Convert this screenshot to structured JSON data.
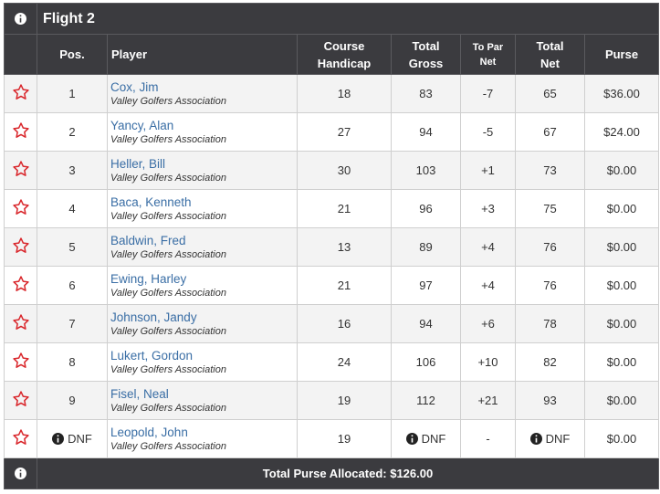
{
  "title": "Flight 2",
  "headers": {
    "pos": "Pos.",
    "player": "Player",
    "handicap_1": "Course",
    "handicap_2": "Handicap",
    "gross_1": "Total",
    "gross_2": "Gross",
    "topar_1": "To Par",
    "topar_2": "Net",
    "net_1": "Total",
    "net_2": "Net",
    "purse": "Purse"
  },
  "rows": [
    {
      "pos": "1",
      "name": "Cox, Jim",
      "assoc": "Valley Golfers Association",
      "handicap": "18",
      "gross": "83",
      "topar": "-7",
      "net": "65",
      "purse": "$36.00"
    },
    {
      "pos": "2",
      "name": "Yancy, Alan",
      "assoc": "Valley Golfers Association",
      "handicap": "27",
      "gross": "94",
      "topar": "-5",
      "net": "67",
      "purse": "$24.00"
    },
    {
      "pos": "3",
      "name": "Heller, Bill",
      "assoc": "Valley Golfers Association",
      "handicap": "30",
      "gross": "103",
      "topar": "+1",
      "net": "73",
      "purse": "$0.00"
    },
    {
      "pos": "4",
      "name": "Baca, Kenneth",
      "assoc": "Valley Golfers Association",
      "handicap": "21",
      "gross": "96",
      "topar": "+3",
      "net": "75",
      "purse": "$0.00"
    },
    {
      "pos": "5",
      "name": "Baldwin, Fred",
      "assoc": "Valley Golfers Association",
      "handicap": "13",
      "gross": "89",
      "topar": "+4",
      "net": "76",
      "purse": "$0.00"
    },
    {
      "pos": "6",
      "name": "Ewing, Harley",
      "assoc": "Valley Golfers Association",
      "handicap": "21",
      "gross": "97",
      "topar": "+4",
      "net": "76",
      "purse": "$0.00"
    },
    {
      "pos": "7",
      "name": "Johnson, Jandy",
      "assoc": "Valley Golfers Association",
      "handicap": "16",
      "gross": "94",
      "topar": "+6",
      "net": "78",
      "purse": "$0.00"
    },
    {
      "pos": "8",
      "name": "Lukert, Gordon",
      "assoc": "Valley Golfers Association",
      "handicap": "24",
      "gross": "106",
      "topar": "+10",
      "net": "82",
      "purse": "$0.00"
    },
    {
      "pos": "9",
      "name": "Fisel, Neal",
      "assoc": "Valley Golfers Association",
      "handicap": "19",
      "gross": "112",
      "topar": "+21",
      "net": "93",
      "purse": "$0.00"
    },
    {
      "pos": "DNF",
      "name": "Leopold, John",
      "assoc": "Valley Golfers Association",
      "handicap": "19",
      "gross": "DNF",
      "topar": "-",
      "net": "DNF",
      "purse": "$0.00",
      "dnf": true
    }
  ],
  "footer": "Total Purse Allocated: $126.00",
  "colors": {
    "header_bg": "#3b3b3f",
    "name_link": "#3a6ea5",
    "under_par": "#d9262b",
    "over_par": "#7a1fa2",
    "star_outline": "#d9262b"
  },
  "icons": {
    "title": "info-icon",
    "footer": "info-icon",
    "favorite": "star-outline-icon"
  }
}
